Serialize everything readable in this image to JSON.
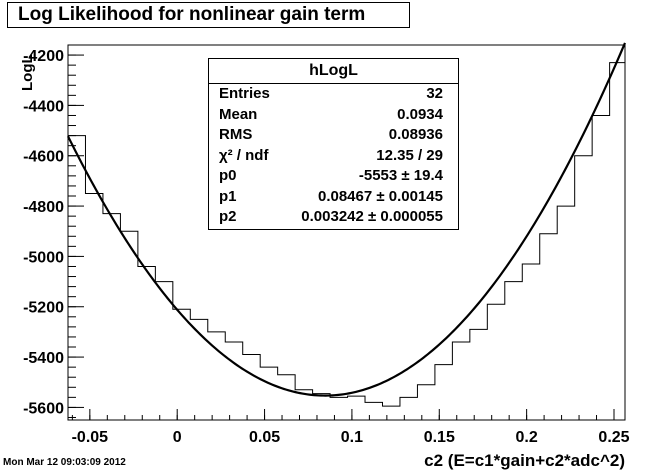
{
  "chart_data": {
    "type": "line",
    "title": "Log Likelihood for nonlinear gain term",
    "xlabel": "c2 (E=c1*gain+c2*adc^2)",
    "ylabel": "LogL",
    "xlim": [
      -0.0625,
      0.2563
    ],
    "ylim": [
      -5650,
      -4160
    ],
    "x_ticks": [
      -0.05,
      0,
      0.05,
      0.1,
      0.15,
      0.2,
      0.25
    ],
    "x_tick_labels": [
      "-0.05",
      "0",
      "0.05",
      "0.1",
      "0.15",
      "0.2",
      "0.25"
    ],
    "y_ticks": [
      -5600,
      -5400,
      -5200,
      -5000,
      -4800,
      -4600,
      -4400,
      -4200
    ],
    "y_tick_labels": [
      "-5600",
      "-5400",
      "-5200",
      "-5000",
      "-4800",
      "-4600",
      "-4400",
      "-4200"
    ],
    "grid": false,
    "histogram": {
      "name": "hLogL",
      "bin_edges": [
        -0.0625,
        -0.0525,
        -0.0425,
        -0.0325,
        -0.0225,
        -0.0125,
        -0.0025,
        0.0075,
        0.0175,
        0.0275,
        0.0375,
        0.0475,
        0.0575,
        0.0675,
        0.0775,
        0.0875,
        0.0975,
        0.1075,
        0.1175,
        0.1275,
        0.1375,
        0.1475,
        0.1575,
        0.1675,
        0.1775,
        0.1875,
        0.1975,
        0.2075,
        0.2175,
        0.2275,
        0.2375,
        0.2475,
        0.2563
      ],
      "values": [
        -4520,
        -4750,
        -4830,
        -4900,
        -5040,
        -5100,
        -5210,
        -5250,
        -5300,
        -5340,
        -5390,
        -5440,
        -5470,
        -5530,
        -5545,
        -5560,
        -5555,
        -5580,
        -5595,
        -5560,
        -5510,
        -5430,
        -5340,
        -5290,
        -5190,
        -5100,
        -5030,
        -4910,
        -4800,
        -4600,
        -4440,
        -4230
      ]
    },
    "fit": {
      "function": "pol2",
      "p0": -5553,
      "p1": 0.08467,
      "p2": 0.003242
    },
    "stats": {
      "name": "hLogL",
      "rows": [
        {
          "label": "Entries",
          "value": "32"
        },
        {
          "label": "Mean",
          "value": "0.0934"
        },
        {
          "label": "RMS",
          "value": "0.08936"
        },
        {
          "label": "χ² / ndf",
          "value": "12.35 / 29"
        },
        {
          "label": "p0",
          "value": "-5553 ± 19.4"
        },
        {
          "label": "p1",
          "value": "0.08467 ± 0.00145"
        },
        {
          "label": "p2",
          "value": "0.003242 ± 0.000055"
        }
      ]
    }
  },
  "timestamp": "Mon Mar 12 09:03:09 2012"
}
